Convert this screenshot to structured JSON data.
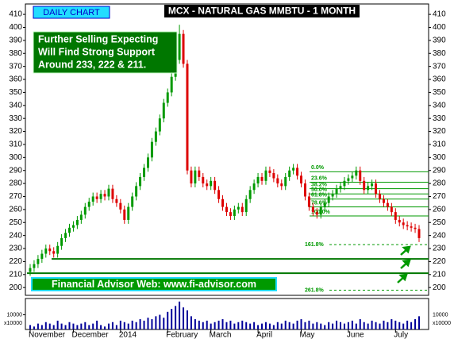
{
  "chart_data": {
    "type": "candlestick",
    "title": "MCX - NATURAL GAS MMBTU - 1 MONTH",
    "badge": "DAILY CHART",
    "note": [
      "Further Selling Expecting",
      "Will Find Strong Support",
      "Around 233, 222 & 211."
    ],
    "footer": "Financial Advisor Web: www.fi-advisor.com",
    "up_color": "#009900",
    "down_color": "#dd0000",
    "ylim": [
      194,
      418
    ],
    "yticks": [
      200,
      210,
      220,
      230,
      240,
      250,
      260,
      270,
      280,
      290,
      300,
      310,
      320,
      330,
      340,
      350,
      360,
      370,
      380,
      390,
      400,
      410
    ],
    "categories": [
      "November",
      null,
      null,
      null,
      null,
      null,
      null,
      null,
      null,
      null,
      null,
      "December",
      null,
      null,
      null,
      null,
      null,
      null,
      null,
      null,
      null,
      null,
      null,
      "2014",
      null,
      null,
      null,
      null,
      null,
      null,
      null,
      null,
      null,
      null,
      null,
      "February",
      null,
      null,
      null,
      null,
      null,
      null,
      null,
      null,
      null,
      null,
      "March",
      null,
      null,
      null,
      null,
      null,
      null,
      null,
      null,
      null,
      null,
      null,
      "April",
      null,
      null,
      null,
      null,
      null,
      null,
      null,
      null,
      null,
      null,
      "May",
      null,
      null,
      null,
      null,
      null,
      null,
      null,
      null,
      null,
      null,
      null,
      "June",
      null,
      null,
      null,
      null,
      null,
      null,
      null,
      null,
      null,
      null,
      null,
      "July",
      null,
      null,
      null,
      null,
      null,
      null
    ],
    "open": [
      212,
      215,
      218,
      222,
      226,
      230,
      228,
      226,
      232,
      238,
      242,
      246,
      248,
      252,
      256,
      262,
      266,
      270,
      268,
      272,
      270,
      276,
      268,
      265,
      260,
      252,
      262,
      270,
      278,
      285,
      292,
      300,
      312,
      320,
      330,
      342,
      350,
      362,
      375,
      395,
      372,
      290,
      280,
      290,
      285,
      280,
      278,
      282,
      275,
      268,
      262,
      258,
      255,
      260,
      262,
      258,
      268,
      275,
      280,
      285,
      282,
      290,
      288,
      284,
      280,
      278,
      285,
      290,
      292,
      286,
      280,
      270,
      262,
      258,
      256,
      262,
      265,
      270,
      272,
      276,
      278,
      282,
      284,
      286,
      290,
      282,
      275,
      278,
      280,
      272,
      268,
      265,
      262,
      258,
      252,
      250,
      248,
      247,
      246,
      245
    ],
    "high": [
      218,
      221,
      225,
      229,
      233,
      233,
      231,
      235,
      241,
      245,
      249,
      251,
      255,
      259,
      265,
      269,
      273,
      273,
      275,
      275,
      279,
      279,
      271,
      268,
      263,
      265,
      273,
      281,
      288,
      295,
      303,
      315,
      323,
      333,
      345,
      353,
      365,
      378,
      402,
      398,
      375,
      293,
      293,
      293,
      288,
      283,
      285,
      285,
      278,
      271,
      265,
      261,
      263,
      265,
      265,
      271,
      278,
      283,
      288,
      288,
      293,
      293,
      291,
      287,
      283,
      288,
      293,
      295,
      295,
      289,
      283,
      273,
      265,
      261,
      265,
      268,
      273,
      275,
      279,
      281,
      285,
      287,
      289,
      293,
      293,
      285,
      281,
      283,
      283,
      275,
      271,
      268,
      265,
      261,
      255,
      253,
      251,
      250,
      249,
      248
    ],
    "low": [
      209,
      212,
      215,
      219,
      223,
      225,
      223,
      223,
      229,
      235,
      239,
      243,
      245,
      249,
      253,
      259,
      263,
      265,
      265,
      267,
      267,
      265,
      262,
      257,
      249,
      249,
      259,
      267,
      275,
      282,
      289,
      297,
      309,
      317,
      327,
      339,
      347,
      359,
      372,
      369,
      287,
      277,
      277,
      282,
      277,
      275,
      275,
      272,
      265,
      259,
      255,
      252,
      252,
      257,
      255,
      255,
      265,
      272,
      277,
      279,
      279,
      285,
      281,
      277,
      275,
      275,
      282,
      287,
      283,
      277,
      267,
      259,
      255,
      253,
      253,
      259,
      262,
      267,
      269,
      273,
      275,
      279,
      281,
      283,
      279,
      272,
      272,
      275,
      269,
      265,
      262,
      259,
      255,
      249,
      247,
      245,
      244,
      243,
      242,
      235
    ],
    "close": [
      215,
      218,
      222,
      226,
      230,
      228,
      226,
      232,
      238,
      242,
      246,
      248,
      252,
      256,
      262,
      266,
      270,
      268,
      272,
      270,
      276,
      268,
      265,
      260,
      252,
      262,
      270,
      278,
      285,
      292,
      300,
      312,
      320,
      330,
      342,
      350,
      362,
      375,
      395,
      372,
      290,
      280,
      290,
      285,
      280,
      278,
      282,
      275,
      268,
      262,
      258,
      255,
      260,
      262,
      258,
      268,
      275,
      280,
      285,
      282,
      290,
      288,
      284,
      280,
      278,
      285,
      290,
      292,
      286,
      280,
      270,
      262,
      258,
      256,
      262,
      265,
      270,
      272,
      276,
      278,
      282,
      284,
      286,
      290,
      282,
      275,
      278,
      280,
      272,
      268,
      265,
      262,
      258,
      252,
      250,
      248,
      247,
      246,
      245,
      238
    ],
    "volume": [
      0.3,
      0.2,
      0.4,
      0.3,
      0.5,
      0.4,
      0.3,
      0.6,
      0.4,
      0.3,
      0.5,
      0.4,
      0.3,
      0.4,
      0.5,
      0.3,
      0.4,
      0.6,
      0.3,
      0.2,
      0.4,
      0.5,
      0.3,
      0.6,
      0.5,
      0.4,
      0.6,
      0.5,
      0.7,
      0.6,
      0.8,
      0.7,
      0.9,
      1.0,
      0.8,
      1.2,
      1.4,
      1.6,
      1.9,
      1.5,
      1.3,
      0.9,
      0.7,
      0.6,
      0.5,
      0.6,
      0.4,
      0.5,
      0.6,
      0.7,
      0.5,
      0.6,
      0.4,
      0.5,
      0.6,
      0.5,
      0.4,
      0.5,
      0.3,
      0.4,
      0.5,
      0.4,
      0.3,
      0.5,
      0.4,
      0.6,
      0.5,
      0.4,
      0.6,
      0.7,
      0.5,
      0.6,
      0.4,
      0.5,
      0.4,
      0.3,
      0.5,
      0.4,
      0.6,
      0.5,
      0.4,
      0.5,
      0.6,
      0.4,
      0.7,
      0.5,
      0.4,
      0.6,
      0.5,
      0.4,
      0.6,
      0.5,
      0.7,
      0.6,
      0.5,
      0.4,
      0.6,
      0.5,
      0.7,
      0.9
    ],
    "volume_color": "#000099",
    "volume_ylim": [
      0,
      2
    ],
    "volume_yticks": [
      {
        "value": 1,
        "label": "10000"
      }
    ],
    "volume_unit": "x10000",
    "support_lines": [
      222,
      211
    ],
    "fib_levels": [
      {
        "label": "0.0%",
        "value": 289,
        "style": "solid"
      },
      {
        "label": "23.6%",
        "value": 281,
        "style": "solid"
      },
      {
        "label": "38.2%",
        "value": 276,
        "style": "solid"
      },
      {
        "label": "50.0%",
        "value": 272,
        "style": "solid"
      },
      {
        "label": "61.8%",
        "value": 268,
        "style": "solid"
      },
      {
        "label": "78.6%",
        "value": 262,
        "style": "solid"
      },
      {
        "label": "100.0%",
        "value": 255,
        "style": "solid"
      },
      {
        "label": "161.8%",
        "value": 233,
        "style": "dashed"
      },
      {
        "label": "261.8%",
        "value": 198,
        "style": "dashed"
      }
    ]
  }
}
